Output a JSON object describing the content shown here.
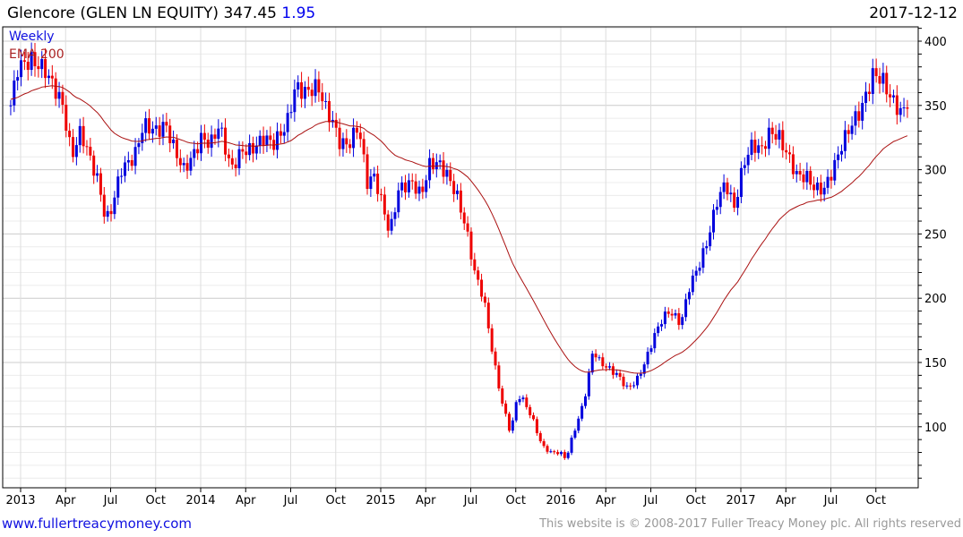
{
  "header": {
    "name": "Glencore (GLEN LN EQUITY)",
    "price": "347.45",
    "change": "1.95",
    "date": "2017-12-12"
  },
  "footer": {
    "link": "www.fullertreacymoney.com",
    "copyright": "This website is © 2008-2017 Fuller Treacy Money plc. All rights reserved"
  },
  "colors": {
    "up": "#0000dd",
    "down": "#ee0000",
    "ema": "#aa1111",
    "grid": "#dddddd"
  },
  "chart_data": {
    "type": "candlestick",
    "title": "Glencore (GLEN LN EQUITY)",
    "legend": [
      "Weekly",
      "EMA 200"
    ],
    "legend_placement": "top-left",
    "ylim": [
      52,
      411
    ],
    "yticks": [
      100,
      150,
      200,
      250,
      300,
      350,
      400
    ],
    "xticks": [
      {
        "t": 2013.0,
        "label": "2013"
      },
      {
        "t": 2013.25,
        "label": "Apr"
      },
      {
        "t": 2013.5,
        "label": "Jul"
      },
      {
        "t": 2013.75,
        "label": "Oct"
      },
      {
        "t": 2014.0,
        "label": "2014"
      },
      {
        "t": 2014.25,
        "label": "Apr"
      },
      {
        "t": 2014.5,
        "label": "Jul"
      },
      {
        "t": 2014.75,
        "label": "Oct"
      },
      {
        "t": 2015.0,
        "label": "2015"
      },
      {
        "t": 2015.25,
        "label": "Apr"
      },
      {
        "t": 2015.5,
        "label": "Jul"
      },
      {
        "t": 2015.75,
        "label": "Oct"
      },
      {
        "t": 2016.0,
        "label": "2016"
      },
      {
        "t": 2016.25,
        "label": "Apr"
      },
      {
        "t": 2016.5,
        "label": "Jul"
      },
      {
        "t": 2016.75,
        "label": "Oct"
      },
      {
        "t": 2017.0,
        "label": "2017"
      },
      {
        "t": 2017.25,
        "label": "Apr"
      },
      {
        "t": 2017.5,
        "label": "Jul"
      },
      {
        "t": 2017.75,
        "label": "Oct"
      }
    ],
    "ema_period_weeks": 40,
    "ema_seed": 355,
    "close_points": [
      [
        2012.945,
        350
      ],
      [
        2012.985,
        380
      ],
      [
        2013.06,
        385
      ],
      [
        2013.134,
        378
      ],
      [
        2013.194,
        362
      ],
      [
        2013.234,
        350
      ],
      [
        2013.259,
        330
      ],
      [
        2013.284,
        310
      ],
      [
        2013.333,
        330
      ],
      [
        2013.383,
        310
      ],
      [
        2013.433,
        290
      ],
      [
        2013.473,
        260
      ],
      [
        2013.507,
        270
      ],
      [
        2013.557,
        300
      ],
      [
        2013.632,
        310
      ],
      [
        2013.682,
        335
      ],
      [
        2013.756,
        330
      ],
      [
        2013.806,
        335
      ],
      [
        2013.856,
        315
      ],
      [
        2013.906,
        300
      ],
      [
        2013.955,
        310
      ],
      [
        2014.005,
        325
      ],
      [
        2014.055,
        320
      ],
      [
        2014.104,
        335
      ],
      [
        2014.169,
        300
      ],
      [
        2014.229,
        315
      ],
      [
        2014.279,
        315
      ],
      [
        2014.353,
        325
      ],
      [
        2014.403,
        320
      ],
      [
        2014.478,
        335
      ],
      [
        2014.527,
        365
      ],
      [
        2014.577,
        360
      ],
      [
        2014.652,
        365
      ],
      [
        2014.701,
        345
      ],
      [
        2014.726,
        340
      ],
      [
        2014.776,
        320
      ],
      [
        2014.826,
        320
      ],
      [
        2014.876,
        335
      ],
      [
        2014.925,
        290
      ],
      [
        2014.965,
        295
      ],
      [
        2015.015,
        270
      ],
      [
        2015.05,
        250
      ],
      [
        2015.1,
        285
      ],
      [
        2015.174,
        290
      ],
      [
        2015.224,
        280
      ],
      [
        2015.274,
        305
      ],
      [
        2015.323,
        305
      ],
      [
        2015.373,
        295
      ],
      [
        2015.423,
        280
      ],
      [
        2015.473,
        255
      ],
      [
        2015.522,
        220
      ],
      [
        2015.572,
        200
      ],
      [
        2015.612,
        165
      ],
      [
        2015.637,
        145
      ],
      [
        2015.672,
        120
      ],
      [
        2015.721,
        95
      ],
      [
        2015.761,
        125
      ],
      [
        2015.796,
        120
      ],
      [
        2015.846,
        105
      ],
      [
        2015.896,
        85
      ],
      [
        2015.945,
        80
      ],
      [
        2015.995,
        80
      ],
      [
        2016.03,
        75
      ],
      [
        2016.07,
        95
      ],
      [
        2016.109,
        110
      ],
      [
        2016.144,
        130
      ],
      [
        2016.179,
        160
      ],
      [
        2016.219,
        150
      ],
      [
        2016.269,
        145
      ],
      [
        2016.318,
        140
      ],
      [
        2016.368,
        130
      ],
      [
        2016.418,
        135
      ],
      [
        2016.468,
        150
      ],
      [
        2016.517,
        170
      ],
      [
        2016.567,
        185
      ],
      [
        2016.607,
        190
      ],
      [
        2016.667,
        180
      ],
      [
        2016.716,
        210
      ],
      [
        2016.766,
        225
      ],
      [
        2016.816,
        245
      ],
      [
        2016.866,
        275
      ],
      [
        2016.915,
        290
      ],
      [
        2016.965,
        270
      ],
      [
        2017.015,
        305
      ],
      [
        2017.065,
        320
      ],
      [
        2017.114,
        315
      ],
      [
        2017.164,
        330
      ],
      [
        2017.214,
        325
      ],
      [
        2017.264,
        310
      ],
      [
        2017.313,
        295
      ],
      [
        2017.363,
        295
      ],
      [
        2017.413,
        285
      ],
      [
        2017.463,
        285
      ],
      [
        2017.512,
        300
      ],
      [
        2017.562,
        320
      ],
      [
        2017.612,
        335
      ],
      [
        2017.662,
        345
      ],
      [
        2017.701,
        360
      ],
      [
        2017.736,
        375
      ],
      [
        2017.786,
        370
      ],
      [
        2017.836,
        355
      ],
      [
        2017.886,
        345
      ],
      [
        2017.925,
        347.45
      ]
    ]
  }
}
